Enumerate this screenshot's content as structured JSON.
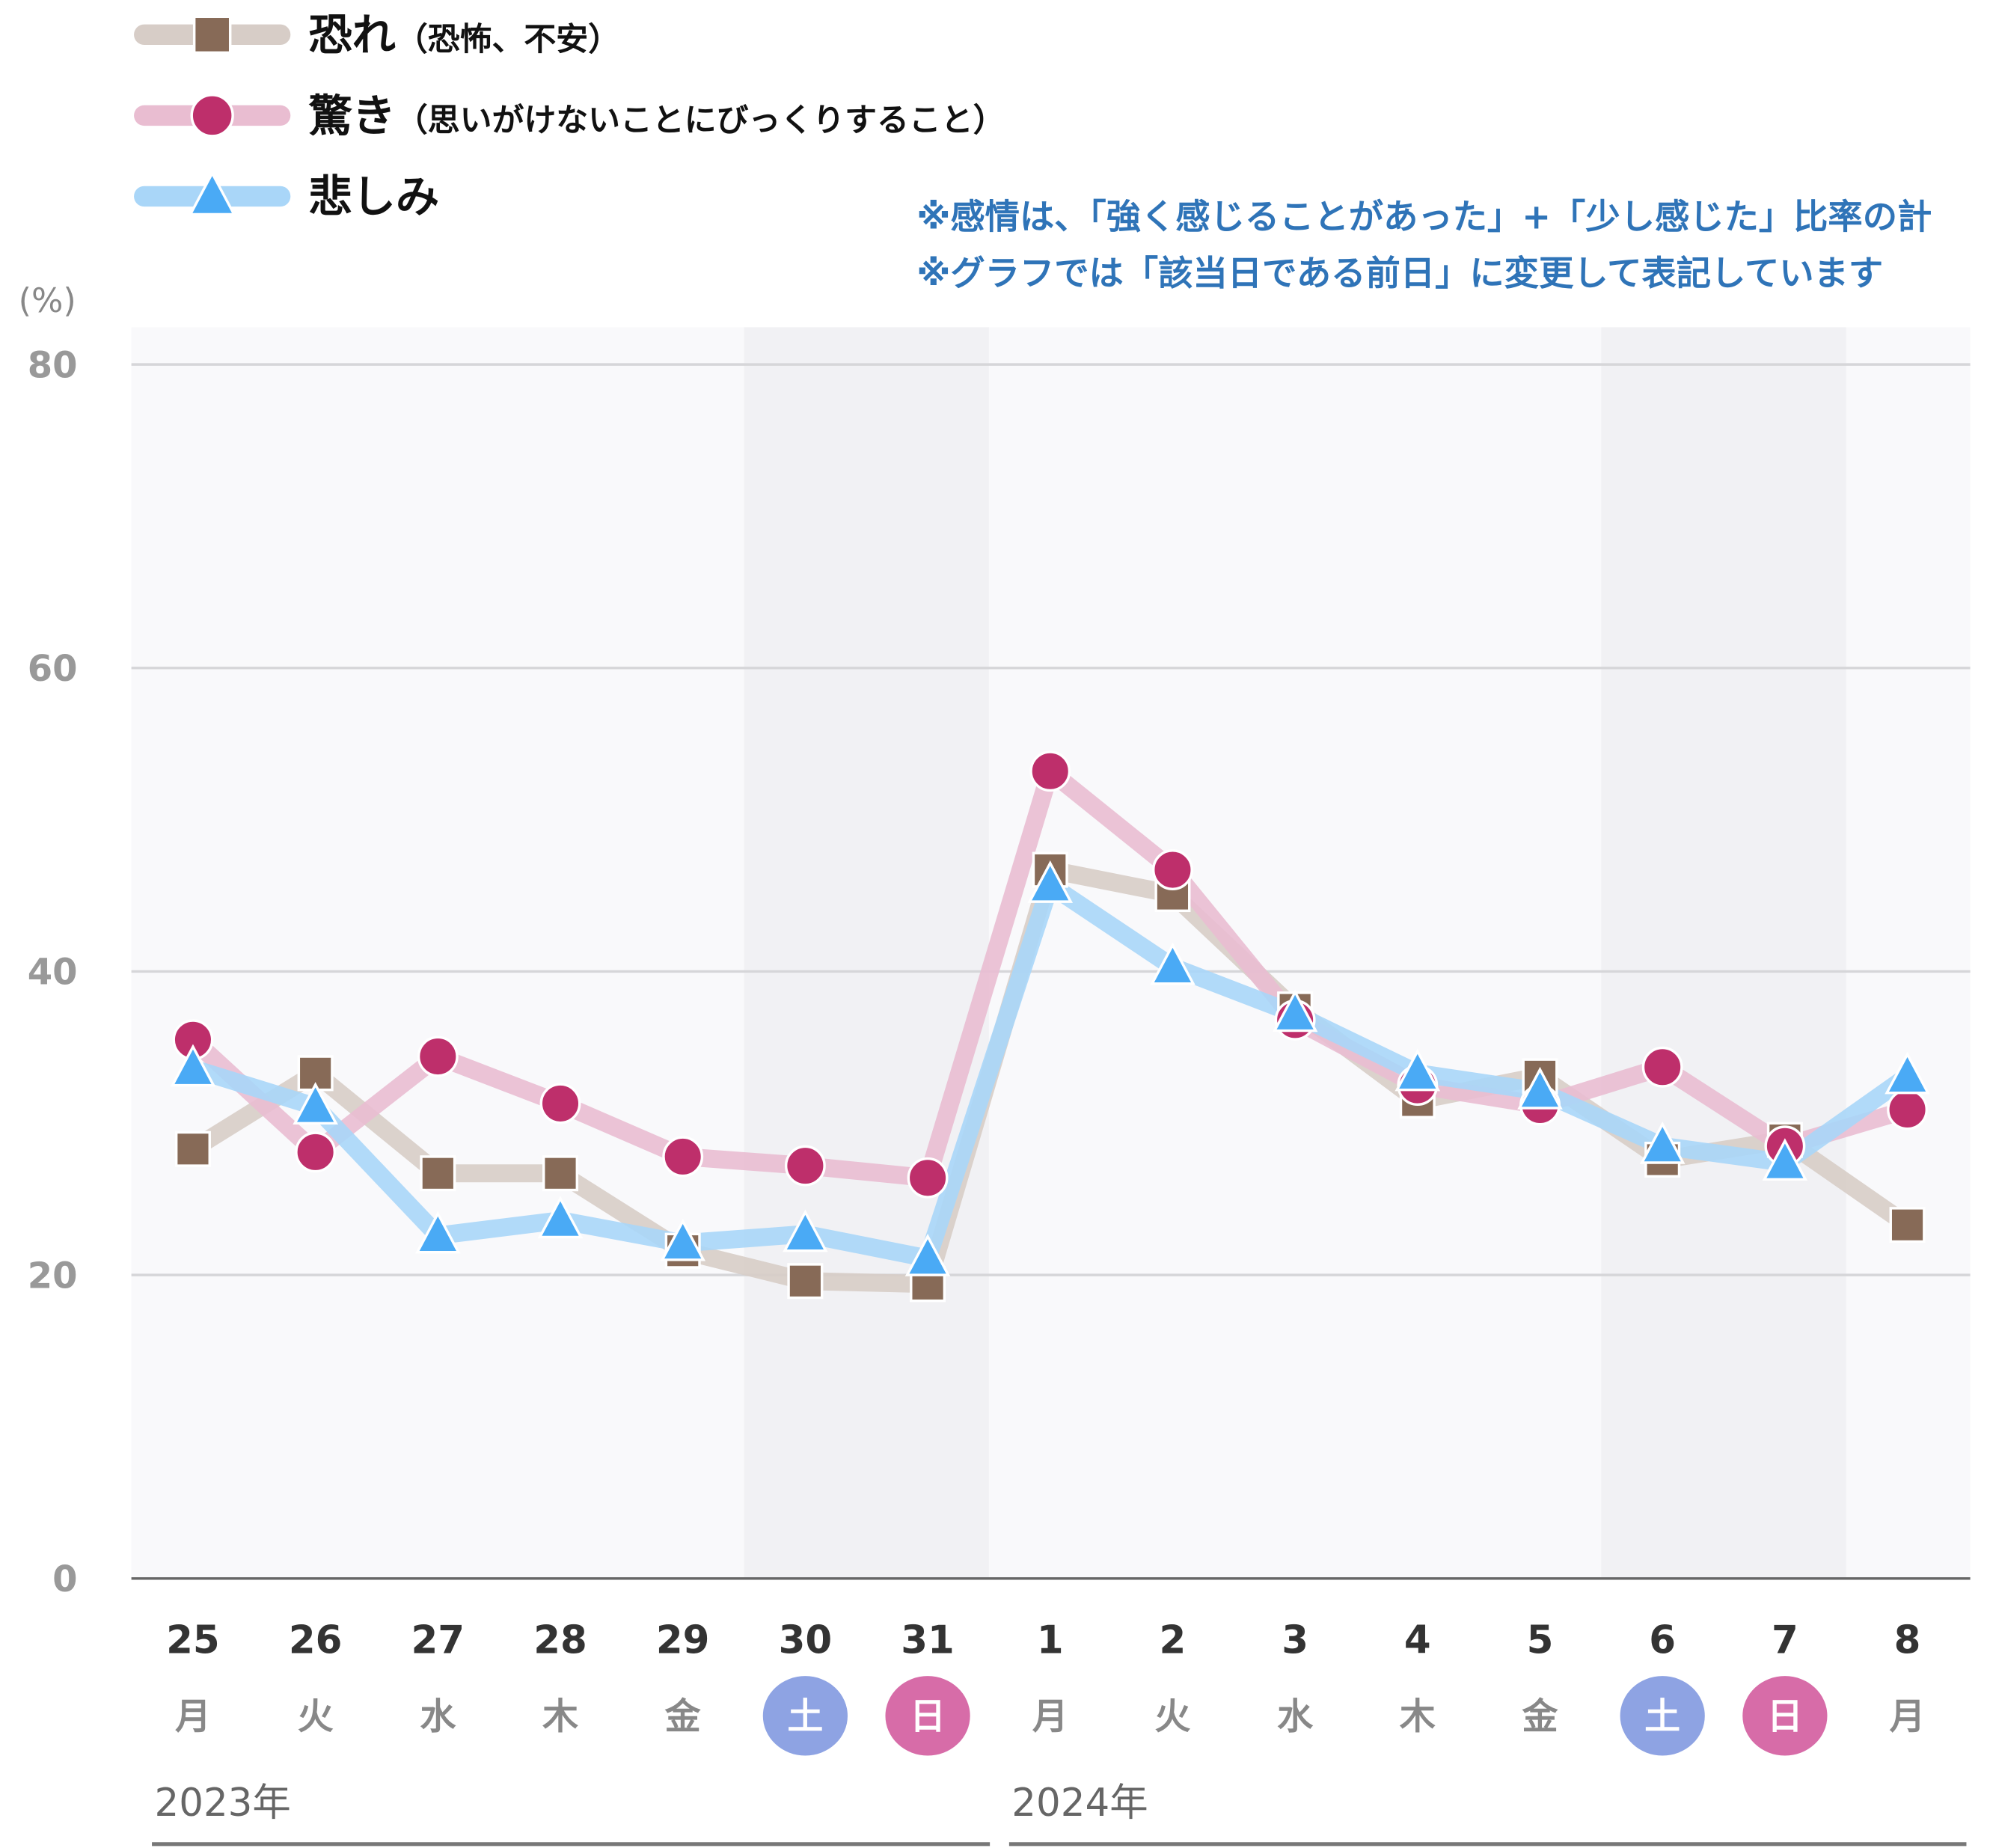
{
  "chart_data": {
    "type": "line",
    "ylabel": "(%)",
    "ylim": [
      0,
      80
    ],
    "yticks": [
      "0",
      "20",
      "40",
      "60",
      "80"
    ],
    "categories": [
      "25",
      "26",
      "27",
      "28",
      "29",
      "30",
      "31",
      "1",
      "2",
      "3",
      "4",
      "5",
      "6",
      "7",
      "8"
    ],
    "weekdays": [
      "月",
      "火",
      "水",
      "木",
      "金",
      "土",
      "日",
      "月",
      "火",
      "水",
      "木",
      "金",
      "土",
      "日",
      "月"
    ],
    "weekend_index": {
      "sat": [
        5,
        12
      ],
      "sun": [
        6,
        13
      ]
    },
    "years": [
      "2023年",
      "2024年"
    ],
    "notes": [
      "※感情は、「強く感じることがあった」+「少し感じた」比率の計",
      "※グラフでは「該当日である前日」に変更して表記しています"
    ],
    "series": [
      {
        "name": "恐れ",
        "sub": "（恐怖、不安）",
        "marker": "square",
        "color": "#876a57",
        "line_color": "#d7cdc7",
        "values": [
          28.3,
          33.3,
          26.7,
          26.7,
          21.6,
          19.6,
          19.4,
          46.7,
          45.1,
          37.5,
          31.5,
          33.1,
          27.6,
          28.9,
          23.3
        ]
      },
      {
        "name": "驚き",
        "sub": "（思いがけないことにびっくりすること）",
        "marker": "circle",
        "color": "#be2f6b",
        "line_color": "#e9bdd1",
        "values": [
          35.5,
          28.1,
          34.4,
          31.3,
          27.8,
          27.2,
          26.4,
          53.2,
          46.7,
          36.8,
          32.5,
          31.2,
          33.7,
          28.5,
          30.9
        ]
      },
      {
        "name": "悲しみ",
        "sub": "",
        "marker": "triangle",
        "color": "#4aaaf5",
        "line_color": "#a9d6f8",
        "values": [
          33.6,
          31.1,
          22.6,
          23.6,
          22.1,
          22.7,
          21.1,
          45.7,
          40.3,
          37.2,
          33.3,
          32.1,
          28.5,
          27.4,
          33.1
        ]
      }
    ],
    "colors": {
      "sat": "#8ea3e3",
      "sun": "#d76ca8",
      "note": "#2f74b8"
    }
  }
}
